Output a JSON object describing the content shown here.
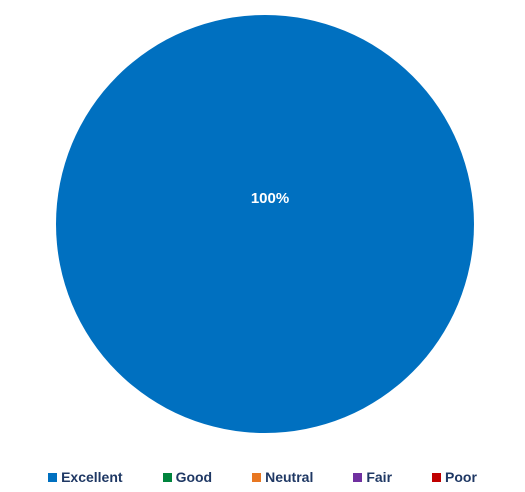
{
  "chart_data": {
    "type": "pie",
    "title": "",
    "categories": [
      "Excellent",
      "Good",
      "Neutral",
      "Fair",
      "Poor"
    ],
    "values": [
      100,
      0,
      0,
      0,
      0
    ],
    "colors": [
      "#0070c0",
      "#00843d",
      "#e87722",
      "#7030a0",
      "#c00000"
    ],
    "data_labels": [
      "100%",
      "",
      "",
      "",
      ""
    ],
    "legend": {
      "position": "bottom",
      "items": [
        {
          "label": "Excellent",
          "color": "#0070c0"
        },
        {
          "label": "Good",
          "color": "#00843d"
        },
        {
          "label": "Neutral",
          "color": "#e87722"
        },
        {
          "label": "Fair",
          "color": "#7030a0"
        },
        {
          "label": "Poor",
          "color": "#c00000"
        }
      ]
    }
  }
}
